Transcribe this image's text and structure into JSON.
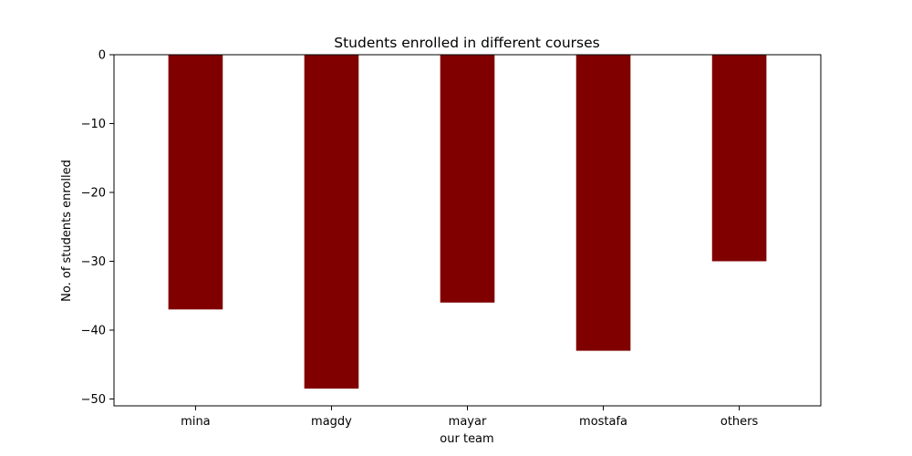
{
  "chart_data": {
    "type": "bar",
    "title": "Students enrolled in different courses",
    "xlabel": "our team",
    "ylabel": "No. of students enrolled",
    "categories": [
      "mina",
      "magdy",
      "mayar",
      "mostafa",
      "others"
    ],
    "values": [
      -37,
      -48.5,
      -36,
      -43,
      -30
    ],
    "ylim": [
      -51,
      0
    ],
    "yticks": [
      0,
      -10,
      -20,
      -30,
      -40,
      -50
    ],
    "ytick_labels": [
      "0",
      "−10",
      "−20",
      "−30",
      "−40",
      "−50"
    ],
    "bar_color": "#800000",
    "grid": false,
    "legend": "none"
  }
}
